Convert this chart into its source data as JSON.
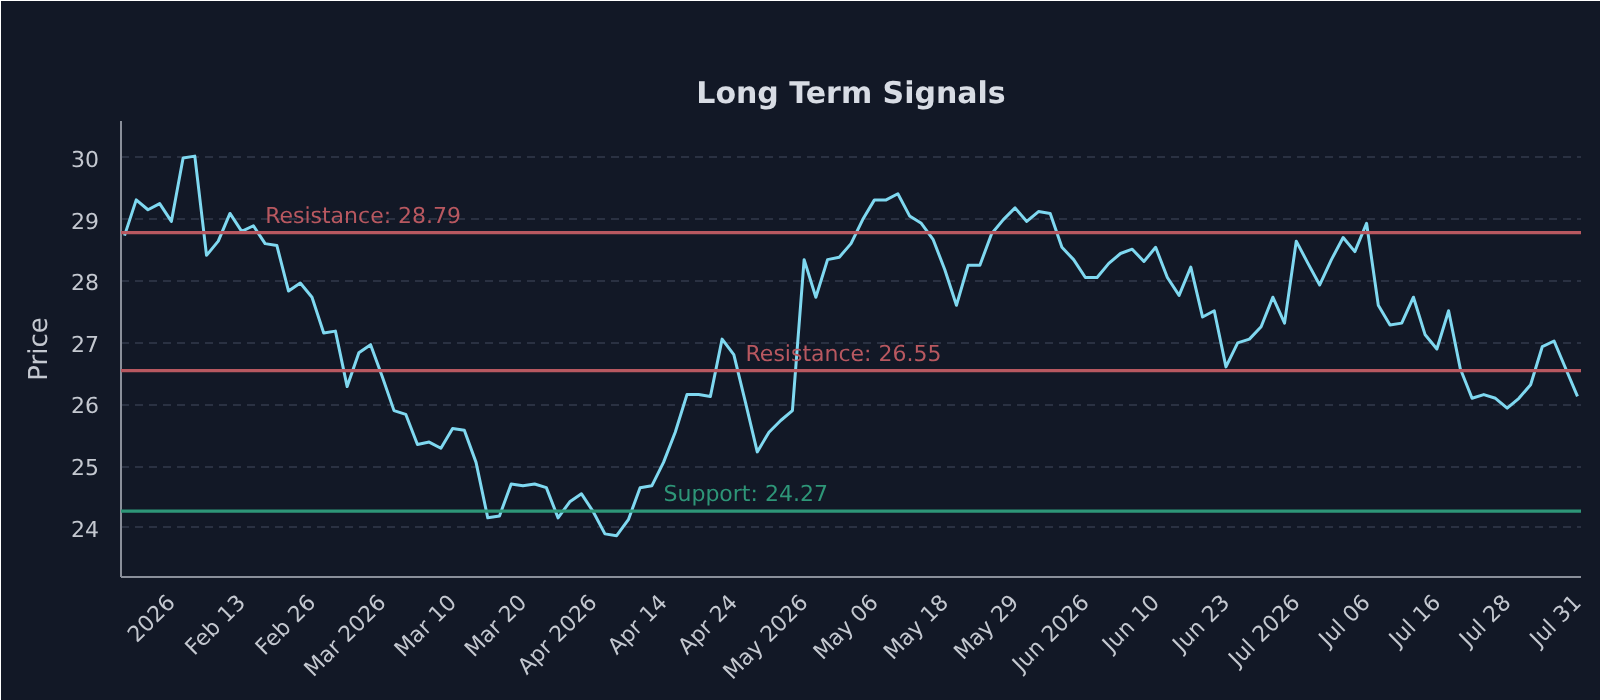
{
  "chart_data": {
    "type": "line",
    "title": "Long Term Signals",
    "ylabel": "Price",
    "categories": [
      null,
      null,
      null,
      null,
      "2026",
      null,
      null,
      null,
      null,
      null,
      "Feb 13",
      null,
      null,
      null,
      null,
      null,
      "Feb 26",
      null,
      null,
      null,
      null,
      null,
      "Mar 2026",
      null,
      null,
      null,
      null,
      null,
      "Mar 10",
      null,
      null,
      null,
      null,
      null,
      "Mar 20",
      null,
      null,
      null,
      null,
      null,
      "Apr 2026",
      null,
      null,
      null,
      null,
      null,
      "Apr 14",
      null,
      null,
      null,
      null,
      null,
      "Apr 24",
      null,
      null,
      null,
      null,
      null,
      "May 2026",
      null,
      null,
      null,
      null,
      null,
      "May 06",
      null,
      null,
      null,
      null,
      null,
      "May 18",
      null,
      null,
      null,
      null,
      null,
      "May 29",
      null,
      null,
      null,
      null,
      null,
      "Jun 2026",
      null,
      null,
      null,
      null,
      null,
      "Jun 10",
      null,
      null,
      null,
      null,
      null,
      "Jun 23",
      null,
      null,
      null,
      null,
      null,
      "Jul 2026",
      null,
      null,
      null,
      null,
      null,
      "Jul 06",
      null,
      null,
      null,
      null,
      null,
      "Jul 16",
      null,
      null,
      null,
      null,
      null,
      "Jul 28",
      null,
      null,
      null,
      null,
      null,
      "Jul 31"
    ],
    "series": [
      {
        "color": "#7fd8f0",
        "values": [
          28.74,
          29.32,
          29.16,
          29.26,
          28.97,
          30.0,
          30.03,
          28.42,
          28.65,
          29.1,
          28.81,
          28.9,
          28.61,
          28.58,
          27.84,
          27.97,
          27.74,
          27.16,
          27.19,
          26.29,
          26.84,
          26.97,
          26.45,
          25.9,
          25.84,
          25.35,
          25.39,
          25.29,
          25.61,
          25.58,
          25.06,
          24.16,
          24.19,
          24.71,
          24.68,
          24.71,
          24.65,
          24.16,
          24.42,
          24.55,
          24.26,
          23.9,
          23.87,
          24.13,
          24.65,
          24.68,
          25.06,
          25.55,
          26.16,
          26.16,
          26.13,
          27.06,
          26.81,
          26.03,
          25.23,
          25.55,
          25.74,
          25.9,
          28.35,
          27.74,
          28.35,
          28.39,
          28.61,
          29.0,
          29.32,
          29.32,
          29.42,
          29.06,
          28.94,
          28.68,
          28.19,
          27.61,
          28.26,
          28.26,
          28.77,
          29.0,
          29.19,
          28.97,
          29.13,
          29.1,
          28.55,
          28.35,
          28.06,
          28.06,
          28.29,
          28.45,
          28.52,
          28.32,
          28.55,
          28.06,
          27.77,
          28.23,
          27.42,
          27.52,
          26.61,
          27.0,
          27.06,
          27.26,
          27.74,
          27.32,
          28.65,
          28.29,
          27.94,
          28.35,
          28.71,
          28.48,
          28.94,
          27.61,
          27.29,
          27.32,
          27.74,
          27.13,
          26.9,
          27.52,
          26.58,
          26.1,
          26.16,
          26.1,
          25.94,
          26.1,
          26.32,
          26.94,
          27.03,
          26.58,
          26.13
        ]
      }
    ],
    "ylim": [
      23.2,
      30.6
    ],
    "yticks": [
      24,
      25,
      26,
      27,
      28,
      29,
      30
    ],
    "grid": "y",
    "line_style": "solid",
    "marker": "none",
    "ref_lines": [
      {
        "axis": "y",
        "value": 28.79,
        "label": "Resistance: 28.79",
        "color": "#b85860"
      },
      {
        "axis": "y",
        "value": 26.55,
        "label": "Resistance: 26.55",
        "color": "#b85860"
      },
      {
        "axis": "y",
        "value": 24.27,
        "label": "Support: 24.27",
        "color": "#2e9678"
      }
    ]
  }
}
